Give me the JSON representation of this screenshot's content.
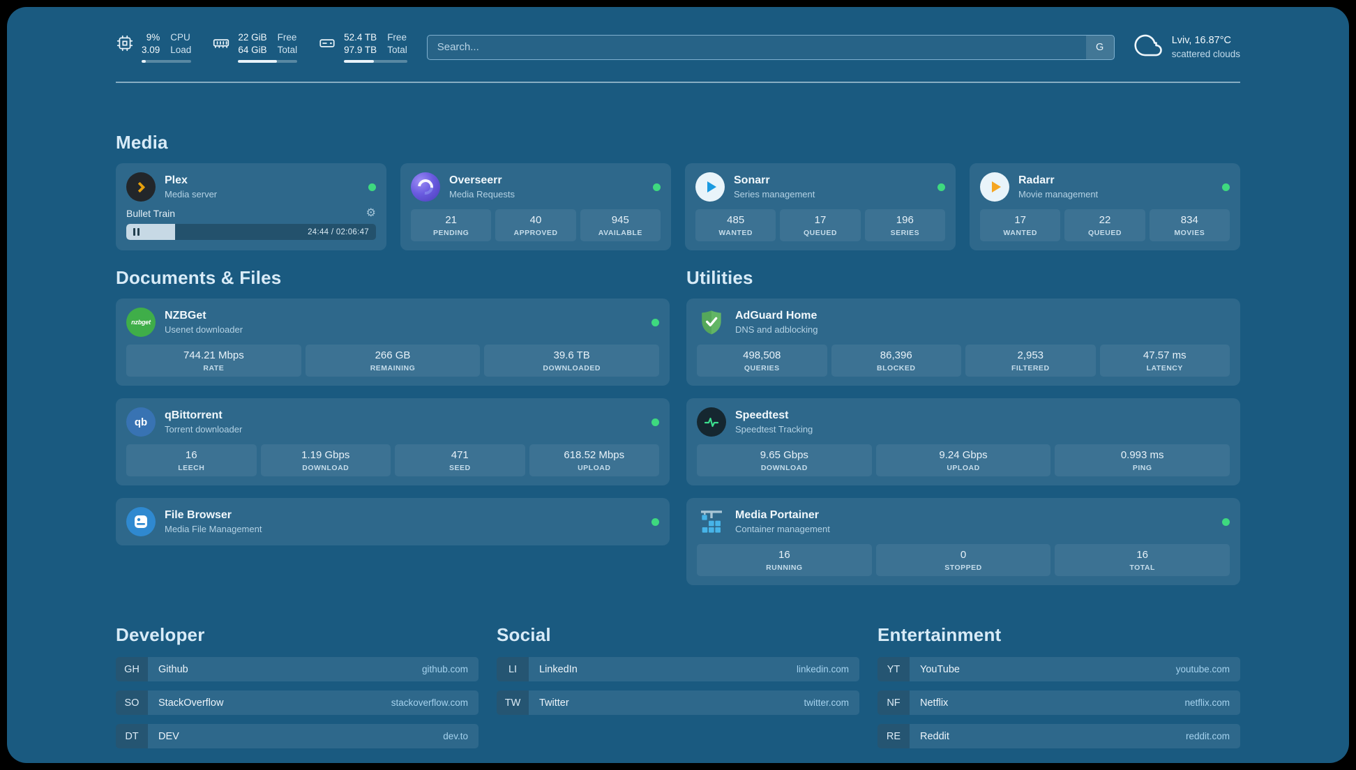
{
  "topbar": {
    "resources": [
      {
        "icon": "cpu-icon",
        "rows": [
          {
            "value": "9%",
            "label": "CPU"
          },
          {
            "value": "3.09",
            "label": "Load"
          }
        ],
        "used_pct": 9
      },
      {
        "icon": "memory-icon",
        "rows": [
          {
            "value": "22 GiB",
            "label": "Free"
          },
          {
            "value": "64 GiB",
            "label": "Total"
          }
        ],
        "used_pct": 66
      },
      {
        "icon": "disk-icon",
        "rows": [
          {
            "value": "52.4 TB",
            "label": "Free"
          },
          {
            "value": "97.9 TB",
            "label": "Total"
          }
        ],
        "used_pct": 47
      }
    ],
    "search": {
      "placeholder": "Search...",
      "provider_button": "G"
    },
    "weather": {
      "icon": "cloud-icon",
      "location": "Lviv, 16.87°C",
      "condition": "scattered clouds"
    }
  },
  "sections": {
    "media": "Media",
    "documents": "Documents & Files",
    "utilities": "Utilities"
  },
  "services": {
    "plex": {
      "name": "Plex",
      "desc": "Media server",
      "online": true,
      "player": {
        "title": "Bullet Train",
        "time": "24:44 / 02:06:47",
        "progress_pct": 19.5
      }
    },
    "overseerr": {
      "name": "Overseerr",
      "desc": "Media Requests",
      "online": true,
      "stats": [
        {
          "value": "21",
          "label": "PENDING"
        },
        {
          "value": "40",
          "label": "APPROVED"
        },
        {
          "value": "945",
          "label": "AVAILABLE"
        }
      ]
    },
    "sonarr": {
      "name": "Sonarr",
      "desc": "Series management",
      "online": true,
      "stats": [
        {
          "value": "485",
          "label": "WANTED"
        },
        {
          "value": "17",
          "label": "QUEUED"
        },
        {
          "value": "196",
          "label": "SERIES"
        }
      ]
    },
    "radarr": {
      "name": "Radarr",
      "desc": "Movie management",
      "online": true,
      "stats": [
        {
          "value": "17",
          "label": "WANTED"
        },
        {
          "value": "22",
          "label": "QUEUED"
        },
        {
          "value": "834",
          "label": "MOVIES"
        }
      ]
    },
    "nzbget": {
      "name": "NZBGet",
      "desc": "Usenet downloader",
      "online": true,
      "icon_text": "nzbget",
      "stats": [
        {
          "value": "744.21 Mbps",
          "label": "RATE"
        },
        {
          "value": "266 GB",
          "label": "REMAINING"
        },
        {
          "value": "39.6 TB",
          "label": "DOWNLOADED"
        }
      ]
    },
    "qbittorrent": {
      "name": "qBittorrent",
      "desc": "Torrent downloader",
      "online": true,
      "icon_text": "qb",
      "stats": [
        {
          "value": "16",
          "label": "LEECH"
        },
        {
          "value": "1.19 Gbps",
          "label": "DOWNLOAD"
        },
        {
          "value": "471",
          "label": "SEED"
        },
        {
          "value": "618.52 Mbps",
          "label": "UPLOAD"
        }
      ]
    },
    "filebrowser": {
      "name": "File Browser",
      "desc": "Media File Management",
      "online": true
    },
    "adguard": {
      "name": "AdGuard Home",
      "desc": "DNS and adblocking",
      "stats": [
        {
          "value": "498,508",
          "label": "QUERIES"
        },
        {
          "value": "86,396",
          "label": "BLOCKED"
        },
        {
          "value": "2,953",
          "label": "FILTERED"
        },
        {
          "value": "47.57 ms",
          "label": "LATENCY"
        }
      ]
    },
    "speedtest": {
      "name": "Speedtest",
      "desc": "Speedtest Tracking",
      "stats": [
        {
          "value": "9.65 Gbps",
          "label": "DOWNLOAD"
        },
        {
          "value": "9.24 Gbps",
          "label": "UPLOAD"
        },
        {
          "value": "0.993 ms",
          "label": "PING"
        }
      ]
    },
    "portainer": {
      "name": "Media Portainer",
      "desc": "Container management",
      "online": true,
      "stats": [
        {
          "value": "16",
          "label": "RUNNING"
        },
        {
          "value": "0",
          "label": "STOPPED"
        },
        {
          "value": "16",
          "label": "TOTAL"
        }
      ]
    }
  },
  "bookmarks": [
    {
      "title": "Developer",
      "links": [
        {
          "abbr": "GH",
          "name": "Github",
          "domain": "github.com"
        },
        {
          "abbr": "SO",
          "name": "StackOverflow",
          "domain": "stackoverflow.com"
        },
        {
          "abbr": "DT",
          "name": "DEV",
          "domain": "dev.to"
        }
      ]
    },
    {
      "title": "Social",
      "links": [
        {
          "abbr": "LI",
          "name": "LinkedIn",
          "domain": "linkedin.com"
        },
        {
          "abbr": "TW",
          "name": "Twitter",
          "domain": "twitter.com"
        }
      ]
    },
    {
      "title": "Entertainment",
      "links": [
        {
          "abbr": "YT",
          "name": "YouTube",
          "domain": "youtube.com"
        },
        {
          "abbr": "NF",
          "name": "Netflix",
          "domain": "netflix.com"
        },
        {
          "abbr": "RE",
          "name": "Reddit",
          "domain": "reddit.com"
        }
      ]
    }
  ]
}
